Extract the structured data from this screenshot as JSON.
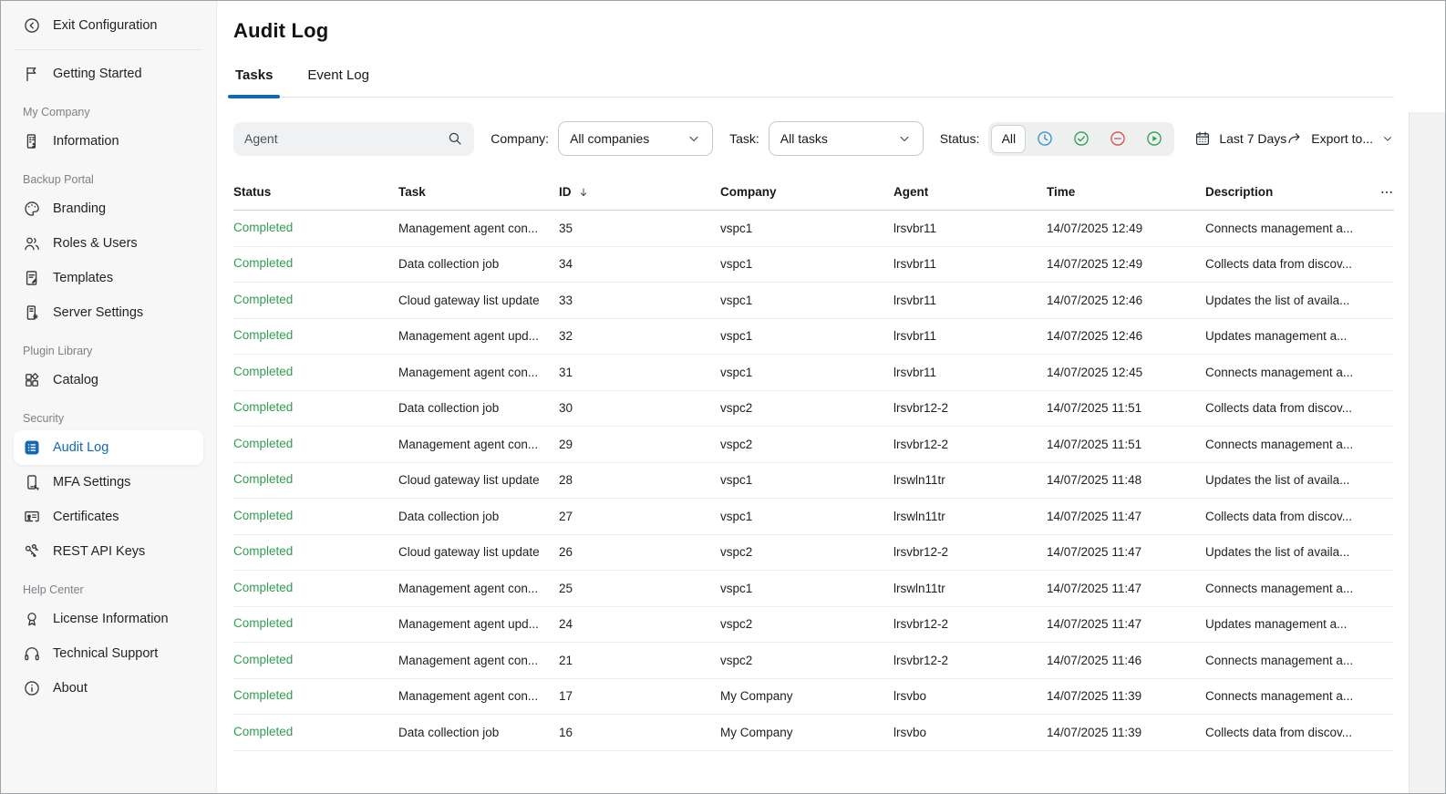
{
  "colors": {
    "accent": "#1268b3",
    "success": "#2f9e4f",
    "danger": "#d14f4f",
    "info": "#3390cf"
  },
  "sidebar": {
    "exit": {
      "label": "Exit Configuration",
      "icon": "back-circle-icon"
    },
    "sections": [
      {
        "header": "",
        "items": [
          {
            "label": "Getting Started",
            "icon": "flag-icon"
          }
        ]
      },
      {
        "header": "My Company",
        "items": [
          {
            "label": "Information",
            "icon": "building-icon"
          }
        ]
      },
      {
        "header": "Backup Portal",
        "items": [
          {
            "label": "Branding",
            "icon": "palette-icon"
          },
          {
            "label": "Roles & Users",
            "icon": "users-icon"
          },
          {
            "label": "Templates",
            "icon": "template-icon"
          },
          {
            "label": "Server Settings",
            "icon": "server-gear-icon"
          }
        ]
      },
      {
        "header": "Plugin Library",
        "items": [
          {
            "label": "Catalog",
            "icon": "catalog-icon"
          }
        ]
      },
      {
        "header": "Security",
        "items": [
          {
            "label": "Audit Log",
            "icon": "audit-log-icon",
            "active": true
          },
          {
            "label": "MFA Settings",
            "icon": "mfa-icon"
          },
          {
            "label": "Certificates",
            "icon": "certificate-icon"
          },
          {
            "label": "REST API Keys",
            "icon": "api-keys-icon"
          }
        ]
      },
      {
        "header": "Help Center",
        "items": [
          {
            "label": "License Information",
            "icon": "medal-icon"
          },
          {
            "label": "Technical Support",
            "icon": "headset-icon"
          },
          {
            "label": "About",
            "icon": "info-icon"
          }
        ]
      }
    ]
  },
  "header": {
    "title": "Audit Log",
    "tabs": [
      {
        "label": "Tasks",
        "active": true
      },
      {
        "label": "Event Log",
        "active": false
      }
    ]
  },
  "filters": {
    "search": {
      "placeholder": "Agent",
      "value": "",
      "icon": "search-icon"
    },
    "company": {
      "label": "Company:",
      "value": "All companies",
      "icon": "chevron-down-icon"
    },
    "task": {
      "label": "Task:",
      "value": "All tasks",
      "icon": "chevron-down-icon"
    },
    "status": {
      "label": "Status:",
      "options": [
        {
          "name": "all",
          "label": "All",
          "selected": true
        },
        {
          "name": "running",
          "icon": "clock-icon",
          "color": "#3390cf"
        },
        {
          "name": "success",
          "icon": "check-circle-icon",
          "color": "#2f9e4f"
        },
        {
          "name": "failed",
          "icon": "minus-circle-icon",
          "color": "#d14f4f"
        },
        {
          "name": "started",
          "icon": "play-circle-icon",
          "color": "#2f9e4f"
        }
      ]
    },
    "date_range": {
      "label": "Last 7 Days",
      "icon": "calendar-icon"
    },
    "export": {
      "label": "Export to...",
      "icon": "export-icon",
      "chevron": "chevron-down-icon"
    }
  },
  "table": {
    "columns": [
      {
        "key": "status",
        "label": "Status"
      },
      {
        "key": "task",
        "label": "Task"
      },
      {
        "key": "id",
        "label": "ID",
        "sorted": "desc"
      },
      {
        "key": "company",
        "label": "Company"
      },
      {
        "key": "agent",
        "label": "Agent"
      },
      {
        "key": "time",
        "label": "Time"
      },
      {
        "key": "description",
        "label": "Description"
      }
    ],
    "status_icon": "check-circle-icon",
    "sort_icon": "sort-down-icon",
    "menu_icon": "ellipsis-icon",
    "rows": [
      {
        "status": "Completed",
        "task": "Management agent con...",
        "id": "35",
        "company": "vspc1",
        "agent": "lrsvbr11",
        "time": "14/07/2025 12:49",
        "description": "Connects management a..."
      },
      {
        "status": "Completed",
        "task": "Data collection job",
        "id": "34",
        "company": "vspc1",
        "agent": "lrsvbr11",
        "time": "14/07/2025 12:49",
        "description": "Collects data from discov..."
      },
      {
        "status": "Completed",
        "task": "Cloud gateway list update",
        "id": "33",
        "company": "vspc1",
        "agent": "lrsvbr11",
        "time": "14/07/2025 12:46",
        "description": "Updates the list of availa..."
      },
      {
        "status": "Completed",
        "task": "Management agent upd...",
        "id": "32",
        "company": "vspc1",
        "agent": "lrsvbr11",
        "time": "14/07/2025 12:46",
        "description": "Updates management a..."
      },
      {
        "status": "Completed",
        "task": "Management agent con...",
        "id": "31",
        "company": "vspc1",
        "agent": "lrsvbr11",
        "time": "14/07/2025 12:45",
        "description": "Connects management a..."
      },
      {
        "status": "Completed",
        "task": "Data collection job",
        "id": "30",
        "company": "vspc2",
        "agent": "lrsvbr12-2",
        "time": "14/07/2025 11:51",
        "description": "Collects data from discov..."
      },
      {
        "status": "Completed",
        "task": "Management agent con...",
        "id": "29",
        "company": "vspc2",
        "agent": "lrsvbr12-2",
        "time": "14/07/2025 11:51",
        "description": "Connects management a..."
      },
      {
        "status": "Completed",
        "task": "Cloud gateway list update",
        "id": "28",
        "company": "vspc1",
        "agent": "lrswln11tr",
        "time": "14/07/2025 11:48",
        "description": "Updates the list of availa..."
      },
      {
        "status": "Completed",
        "task": "Data collection job",
        "id": "27",
        "company": "vspc1",
        "agent": "lrswln11tr",
        "time": "14/07/2025 11:47",
        "description": "Collects data from discov..."
      },
      {
        "status": "Completed",
        "task": "Cloud gateway list update",
        "id": "26",
        "company": "vspc2",
        "agent": "lrsvbr12-2",
        "time": "14/07/2025 11:47",
        "description": "Updates the list of availa..."
      },
      {
        "status": "Completed",
        "task": "Management agent con...",
        "id": "25",
        "company": "vspc1",
        "agent": "lrswln11tr",
        "time": "14/07/2025 11:47",
        "description": "Connects management a..."
      },
      {
        "status": "Completed",
        "task": "Management agent upd...",
        "id": "24",
        "company": "vspc2",
        "agent": "lrsvbr12-2",
        "time": "14/07/2025 11:47",
        "description": "Updates management a..."
      },
      {
        "status": "Completed",
        "task": "Management agent con...",
        "id": "21",
        "company": "vspc2",
        "agent": "lrsvbr12-2",
        "time": "14/07/2025 11:46",
        "description": "Connects management a..."
      },
      {
        "status": "Completed",
        "task": "Management agent con...",
        "id": "17",
        "company": "My Company",
        "agent": "lrsvbo",
        "time": "14/07/2025 11:39",
        "description": "Connects management a..."
      },
      {
        "status": "Completed",
        "task": "Data collection job",
        "id": "16",
        "company": "My Company",
        "agent": "lrsvbo",
        "time": "14/07/2025 11:39",
        "description": "Collects data from discov..."
      }
    ]
  }
}
